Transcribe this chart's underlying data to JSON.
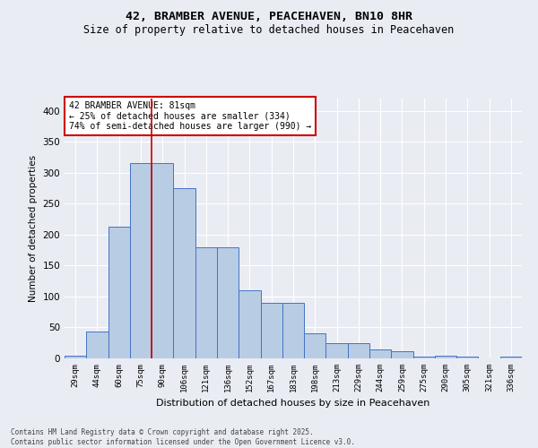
{
  "title": "42, BRAMBER AVENUE, PEACEHAVEN, BN10 8HR",
  "subtitle": "Size of property relative to detached houses in Peacehaven",
  "xlabel": "Distribution of detached houses by size in Peacehaven",
  "ylabel": "Number of detached properties",
  "categories": [
    "29sqm",
    "44sqm",
    "60sqm",
    "75sqm",
    "90sqm",
    "106sqm",
    "121sqm",
    "136sqm",
    "152sqm",
    "167sqm",
    "183sqm",
    "198sqm",
    "213sqm",
    "229sqm",
    "244sqm",
    "259sqm",
    "275sqm",
    "290sqm",
    "305sqm",
    "321sqm",
    "336sqm"
  ],
  "values": [
    4,
    44,
    213,
    315,
    315,
    275,
    180,
    180,
    110,
    90,
    90,
    40,
    25,
    25,
    14,
    12,
    3,
    5,
    3,
    0,
    3
  ],
  "bar_color": "#b8cce4",
  "bar_edge_color": "#4472c4",
  "bg_color": "#eaecf4",
  "grid_color": "#ffffff",
  "vline_x": 3.5,
  "vline_color": "#cc0000",
  "annotation_text": "42 BRAMBER AVENUE: 81sqm\n← 25% of detached houses are smaller (334)\n74% of semi-detached houses are larger (990) →",
  "annotation_box_color": "#cc0000",
  "ylim": [
    0,
    420
  ],
  "yticks": [
    0,
    50,
    100,
    150,
    200,
    250,
    300,
    350,
    400
  ],
  "footer_line1": "Contains HM Land Registry data © Crown copyright and database right 2025.",
  "footer_line2": "Contains public sector information licensed under the Open Government Licence v3.0."
}
